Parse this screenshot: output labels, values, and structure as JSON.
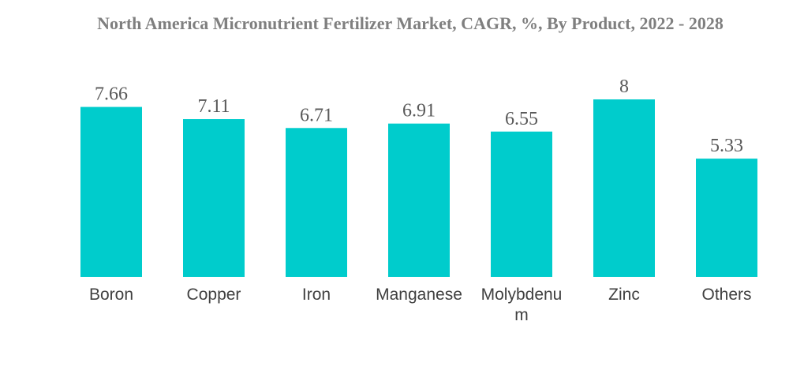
{
  "chart_data": {
    "type": "bar",
    "title": "North America Micronutrient Fertilizer Market, CAGR, %, By Product, 2022 - 2028",
    "categories": [
      "Boron",
      "Copper",
      "Iron",
      "Manganese",
      "Molybdenum",
      "Zinc",
      "Others"
    ],
    "category_display_lines": [
      [
        "Boron"
      ],
      [
        "Copper"
      ],
      [
        "Iron"
      ],
      [
        "Manganese"
      ],
      [
        "Molybdenu",
        "m"
      ],
      [
        "Zinc"
      ],
      [
        "Others"
      ]
    ],
    "values": [
      7.66,
      7.11,
      6.71,
      6.91,
      6.55,
      8,
      5.33
    ],
    "value_labels": [
      "7.66",
      "7.11",
      "6.71",
      "6.91",
      "6.55",
      "8",
      "5.33"
    ],
    "ylim": [
      0,
      8
    ],
    "grid": false,
    "legend": "none",
    "bar_color": "#00cccc",
    "value_label_color": "#595959",
    "category_label_color": "#404040",
    "title_color": "#7f7f7f"
  }
}
